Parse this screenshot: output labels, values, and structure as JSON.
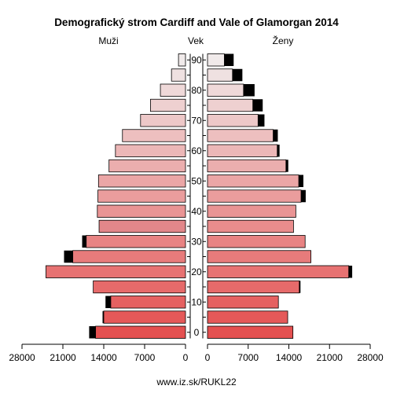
{
  "chart_data": {
    "type": "bar",
    "title": "Demografický strom Cardiff and Vale of Glamorgan 2014",
    "left_label": "Muži",
    "center_label": "Vek",
    "right_label": "Ženy",
    "footer": "www.iz.sk/RUKL22",
    "age_ticks": [
      "90",
      "80",
      "70",
      "60",
      "50",
      "40",
      "30",
      "20",
      "10",
      "0"
    ],
    "x_ticks_left": [
      "28000",
      "21000",
      "14000",
      "7000",
      "0"
    ],
    "x_ticks_right": [
      "0",
      "7000",
      "14000",
      "21000",
      "28000"
    ],
    "xlim": [
      0,
      28000
    ],
    "age_groups": [
      "0-4",
      "5-9",
      "10-14",
      "15-19",
      "20-24",
      "25-29",
      "30-34",
      "35-39",
      "40-44",
      "45-49",
      "50-54",
      "55-59",
      "60-64",
      "65-69",
      "70-74",
      "75-79",
      "80-84",
      "85-89",
      "90+"
    ],
    "series": [
      {
        "name": "Muži",
        "values": [
          15400,
          14000,
          12800,
          15800,
          23900,
          19300,
          17000,
          14800,
          15100,
          15000,
          14900,
          13100,
          12000,
          10800,
          7700,
          6000,
          4300,
          2400,
          1200
        ],
        "excess": [
          1100,
          200,
          900,
          0,
          0,
          1500,
          700,
          0,
          0,
          0,
          0,
          0,
          0,
          0,
          0,
          0,
          0,
          0,
          0
        ]
      },
      {
        "name": "Ženy",
        "values": [
          14700,
          13800,
          12200,
          15800,
          24300,
          17800,
          16800,
          14800,
          15200,
          16100,
          15700,
          13500,
          12000,
          11300,
          8700,
          7800,
          6200,
          4300,
          2900
        ],
        "excess": [
          0,
          0,
          0,
          200,
          600,
          0,
          0,
          0,
          0,
          800,
          800,
          400,
          400,
          800,
          1100,
          1700,
          1900,
          1700,
          1600
        ]
      }
    ]
  }
}
